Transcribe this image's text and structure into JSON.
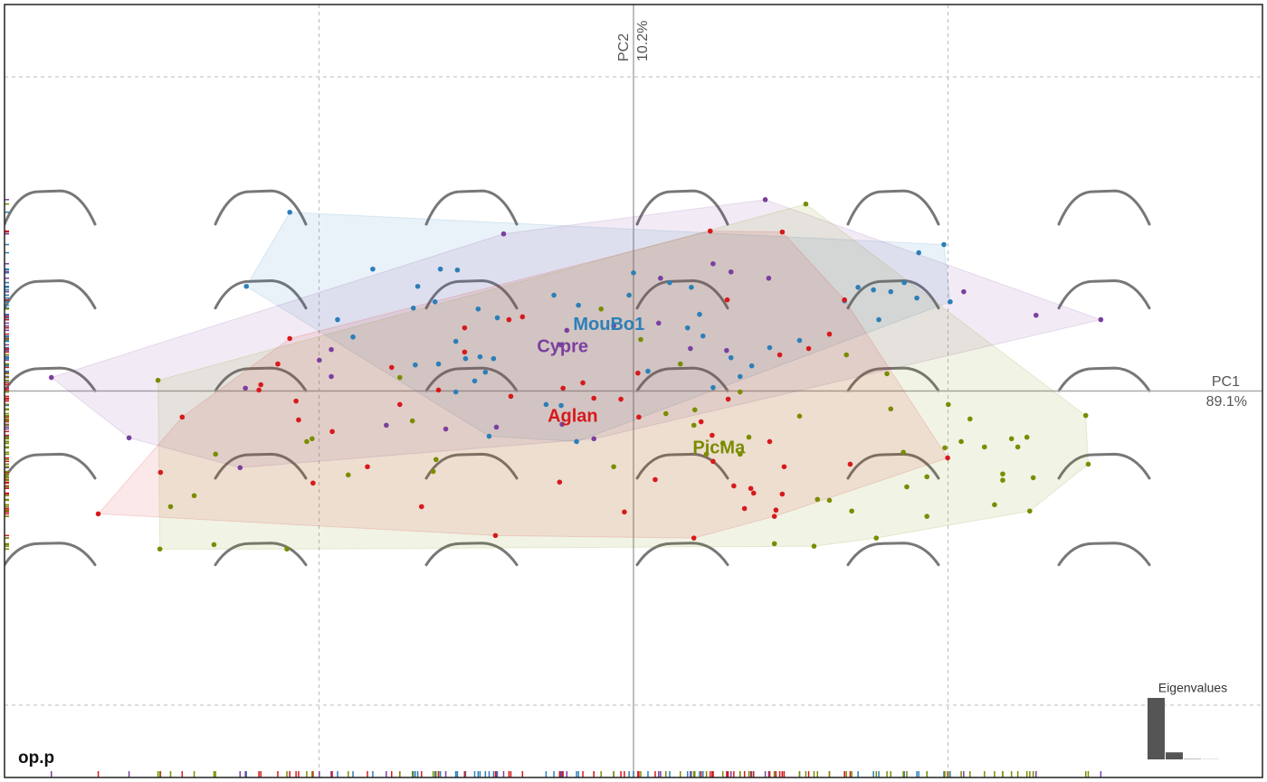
{
  "chart_data": {
    "type": "scatter",
    "title": "op.p",
    "xlabel": "PC1",
    "xlabel_variance": "89.1%",
    "ylabel": "PC2",
    "ylabel_variance": "10.2%",
    "xlim": [
      -2,
      2
    ],
    "ylim": [
      -1.23,
      1.23
    ],
    "xticks": [
      -1,
      0,
      1
    ],
    "yticks": [
      -1,
      0,
      1
    ],
    "grid": true,
    "series": [
      {
        "name": "MouBo1",
        "color": "#2c7fb8",
        "x": [
          -1.093,
          -1.231,
          -0.829,
          -0.614,
          -0.56,
          -0.686,
          -0.631,
          -0.941,
          -0.892,
          -0.7,
          -0.494,
          -0.433,
          -0.565,
          -0.488,
          -0.534,
          -0.445,
          -0.694,
          -0.62,
          -0.471,
          -0.505,
          -0.565,
          -0.253,
          -0.175,
          0,
          -0.014,
          0.115,
          0.184,
          0.21,
          0.172,
          0.221,
          0.253,
          0.31,
          0.376,
          0.339,
          0.433,
          0.528,
          -0.23,
          -0.278,
          -0.181,
          -0.459,
          0.046,
          0.714,
          0.763,
          0.818,
          0.861,
          0.901,
          0.907,
          0.987,
          1.007,
          0.78,
          0.671
        ],
        "y": [
          0.569,
          0.333,
          0.388,
          0.388,
          0.385,
          0.333,
          0.284,
          0.227,
          0.172,
          0.264,
          0.261,
          0.233,
          0.158,
          0.109,
          0.103,
          0.103,
          0.083,
          0.086,
          0.06,
          0.032,
          -0.003,
          0.305,
          0.273,
          0.376,
          0.305,
          0.345,
          0.33,
          0.244,
          0.201,
          0.175,
          0.011,
          0.106,
          0.08,
          0.046,
          0.138,
          0.161,
          -0.046,
          -0.043,
          -0.161,
          -0.144,
          0.063,
          0.33,
          0.322,
          0.316,
          0.345,
          0.296,
          0.44,
          0.466,
          0.284,
          0.227,
          0.287
        ]
      },
      {
        "name": "Cypre",
        "color": "#7b3fa0",
        "x": [
          0.419,
          1.486,
          1.28,
          1.05,
          -0.413,
          -1.851,
          -1.604,
          -1.251,
          -1.234,
          -0.999,
          -0.961,
          -0.961,
          -0.786,
          -0.597,
          -0.436,
          -0.227,
          -0.126,
          -0.212,
          -0.063,
          0.086,
          0.253,
          0.31,
          0.43,
          0.296,
          0.181,
          0.08,
          -0.232
        ],
        "y": [
          0.609,
          0.227,
          0.241,
          0.316,
          0.5,
          0.043,
          -0.149,
          -0.244,
          0.009,
          0.098,
          0.132,
          0.046,
          -0.109,
          -0.121,
          -0.115,
          -0.106,
          -0.152,
          0.193,
          0.207,
          0.359,
          0.405,
          0.379,
          0.359,
          0.129,
          0.135,
          0.216,
          0.147
        ]
      },
      {
        "name": "Aglan",
        "color": "#d7191c",
        "x": [
          0.244,
          0.473,
          -1.702,
          -1.504,
          -1.435,
          -1.185,
          -1.191,
          -1.131,
          -1.093,
          -1.073,
          -1.065,
          -1.019,
          -0.958,
          -0.846,
          -0.769,
          -0.743,
          -0.674,
          -0.62,
          -0.537,
          -0.537,
          -0.439,
          -0.396,
          -0.353,
          -0.39,
          -0.235,
          -0.224,
          -0.161,
          -0.126,
          -0.04,
          -0.029,
          0.017,
          0.014,
          0.069,
          0.192,
          0.215,
          0.25,
          0.298,
          0.301,
          0.319,
          0.373,
          0.382,
          0.353,
          0.433,
          0.448,
          0.453,
          0.479,
          0.465,
          0.557,
          0.623,
          0.671,
          0.473,
          0.689,
          0.999,
          0.253
        ],
        "y": [
          0.509,
          0.506,
          -0.391,
          -0.259,
          -0.083,
          0.02,
          0.003,
          0.086,
          0.167,
          -0.032,
          -0.092,
          -0.293,
          -0.129,
          -0.241,
          0.075,
          -0.043,
          -0.368,
          0.003,
          0.201,
          0.124,
          -0.46,
          0.227,
          0.236,
          -0.017,
          -0.29,
          0.009,
          0.026,
          -0.023,
          -0.026,
          -0.385,
          -0.083,
          0.057,
          -0.282,
          -0.468,
          -0.098,
          -0.141,
          0.29,
          -0.026,
          -0.302,
          -0.31,
          -0.325,
          -0.374,
          -0.161,
          -0.399,
          -0.379,
          -0.241,
          0.115,
          0.135,
          0.181,
          0.29,
          -0.328,
          -0.233,
          -0.213,
          -0.224
        ]
      },
      {
        "name": "PicMa",
        "color": "#7a8c00",
        "x": [
          0.548,
          -1.512,
          -1.506,
          -1.472,
          -1.397,
          -1.334,
          -1.329,
          -1.102,
          -1.039,
          -1.022,
          -0.907,
          -0.743,
          -0.703,
          -0.637,
          -0.628,
          -0.103,
          -0.063,
          0.023,
          0.149,
          0.103,
          0.195,
          0.192,
          0.232,
          0.284,
          0.339,
          0.339,
          0.367,
          0.448,
          0.528,
          0.574,
          0.585,
          0.623,
          0.694,
          0.772,
          0.818,
          0.858,
          0.869,
          0.933,
          0.933,
          0.99,
          1.001,
          1.042,
          1.07,
          1.116,
          1.148,
          1.174,
          1.174,
          1.202,
          1.222,
          1.251,
          1.26,
          1.271,
          1.438,
          1.446,
          0.677,
          0.806
        ],
        "y": [
          0.595,
          0.034,
          -0.503,
          -0.368,
          -0.333,
          -0.489,
          -0.201,
          -0.503,
          -0.161,
          -0.152,
          -0.267,
          0.043,
          -0.095,
          -0.256,
          -0.218,
          0.261,
          -0.241,
          0.164,
          0.086,
          -0.072,
          -0.06,
          -0.109,
          -0.201,
          -0.167,
          -0.003,
          -0.201,
          -0.147,
          -0.486,
          -0.08,
          -0.494,
          -0.345,
          -0.348,
          -0.382,
          -0.468,
          -0.057,
          -0.195,
          -0.305,
          -0.273,
          -0.399,
          -0.181,
          -0.043,
          -0.161,
          -0.089,
          -0.178,
          -0.362,
          -0.264,
          -0.284,
          -0.152,
          -0.178,
          -0.147,
          -0.382,
          -0.276,
          -0.078,
          -0.233,
          0.115,
          0.055
        ]
      }
    ],
    "eigenvalues": {
      "title": "Eigenvalues",
      "values": [
        89.1,
        10.2,
        0.5,
        0.2
      ]
    }
  }
}
